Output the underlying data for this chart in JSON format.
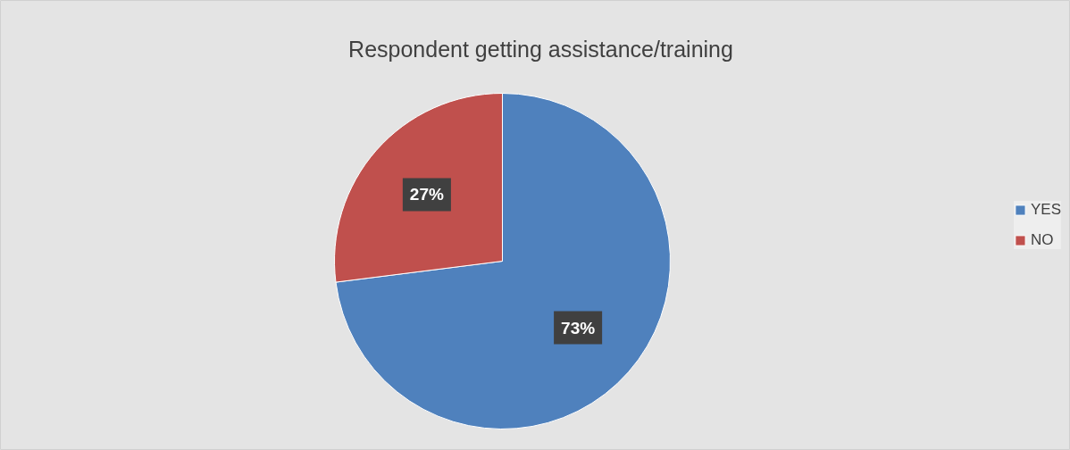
{
  "chart_data": {
    "type": "pie",
    "title": "Respondent getting assistance/training",
    "categories": [
      "YES",
      "NO"
    ],
    "values": [
      73,
      27
    ],
    "value_labels": [
      "73%",
      "27%"
    ],
    "colors": [
      "#4f81bd",
      "#c0504d"
    ],
    "legend": "right"
  }
}
